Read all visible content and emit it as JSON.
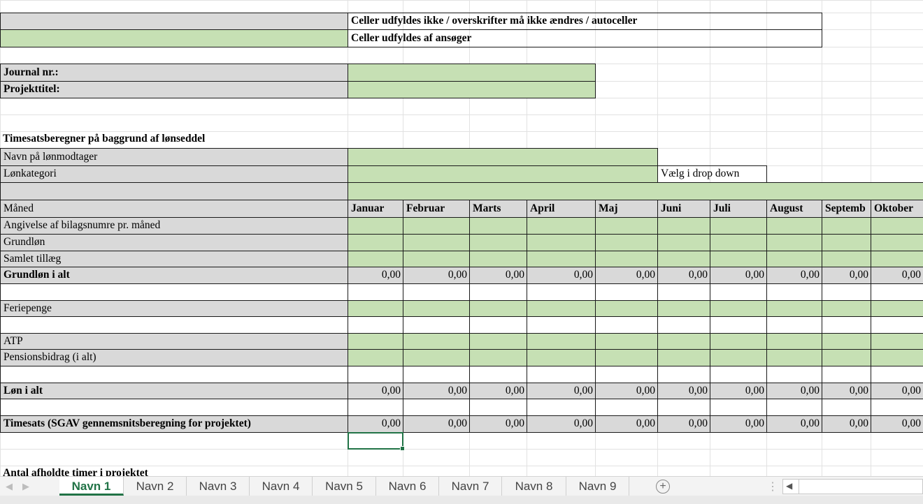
{
  "colors": {
    "autocell_gray": "#d9d9d9",
    "applicant_green": "#c6e0b4",
    "excel_green": "#217346"
  },
  "legend": {
    "autocells": "Celler udfyldes ikke / overskrifter må ikke ændres / autoceller",
    "applicant": "Celler udfyldes af ansøger"
  },
  "project": {
    "journal_label": "Journal nr.:",
    "title_label": "Projekttitel:"
  },
  "calculator": {
    "heading": "Timesatsberegner på baggrund af lønseddel",
    "employee_name_label": "Navn på lønmodtager",
    "wage_category_label": "Lønkategori",
    "dropdown_hint": "Vælg i drop down"
  },
  "table": {
    "month_label": "Måned",
    "months": [
      "Januar",
      "Februar",
      "Marts",
      "April",
      "Maj",
      "Juni",
      "Juli",
      "August",
      "Septemb",
      "Oktober"
    ],
    "rows": {
      "voucher_numbers": "Angivelse af bilagsnumre pr. måned",
      "base_salary": "Grundløn",
      "total_supplement": "Samlet tillæg",
      "base_salary_total": "Grundløn i alt",
      "holiday_pay": "Feriepenge",
      "atp": "ATP",
      "pension": "Pensionsbidrag (i alt)",
      "salary_total": "Løn i alt",
      "hourly_rate": "Timesats (SGAV gennemsnitsberegning for projektet)"
    },
    "base_salary_total_values": [
      "0,00",
      "0,00",
      "0,00",
      "0,00",
      "0,00",
      "0,00",
      "0,00",
      "0,00",
      "0,00",
      "0,00"
    ],
    "salary_total_values": [
      "0,00",
      "0,00",
      "0,00",
      "0,00",
      "0,00",
      "0,00",
      "0,00",
      "0,00",
      "0,00",
      "0,00"
    ],
    "hourly_rate_values": [
      "0,00",
      "0,00",
      "0,00",
      "0,00",
      "0,00",
      "0,00",
      "0,00",
      "0,00",
      "0,00",
      "0,00"
    ]
  },
  "hours_heading": "Antal afholdte timer i projektet",
  "sheet_tabs": {
    "tabs": [
      "Navn 1",
      "Navn 2",
      "Navn 3",
      "Navn 4",
      "Navn 5",
      "Navn 6",
      "Navn 7",
      "Navn 8",
      "Navn 9"
    ],
    "active_index": 0,
    "add_label": "+"
  }
}
